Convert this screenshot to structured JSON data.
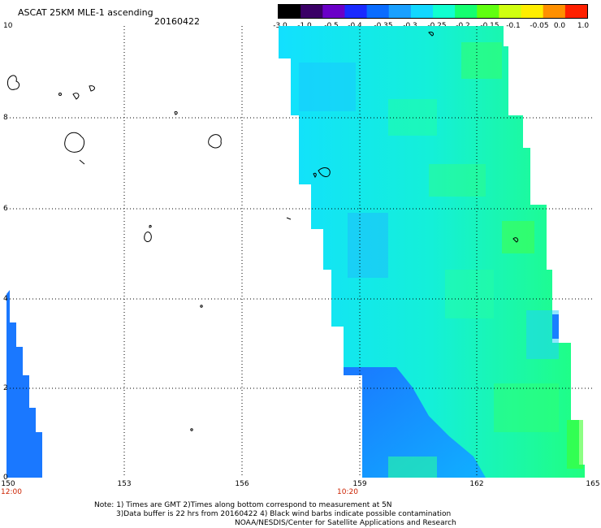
{
  "header": {
    "title": "ASCAT 25KM MLE-1 ascending",
    "date": "20160422"
  },
  "colorbar": {
    "labels": [
      "-3.0",
      "-1.0",
      "-0.5",
      "-0.4",
      "-0.35",
      "-0.3",
      "-0.25",
      "-0.2",
      "-0.15",
      "-0.1",
      "-0.05",
      "0.0",
      "1.0"
    ],
    "colors": [
      "#000000",
      "#3a0066",
      "#6a00c8",
      "#1a2aff",
      "#0a6cff",
      "#1aa0ff",
      "#12d8ff",
      "#10ffd0",
      "#14ff70",
      "#60ff10",
      "#d0ff10",
      "#ffee00",
      "#ff9000",
      "#ff2000"
    ]
  },
  "map": {
    "x_ticks": [
      "150",
      "153",
      "156",
      "159",
      "162",
      "165"
    ],
    "y_ticks": [
      "0",
      "2",
      "4",
      "6",
      "8",
      "10"
    ],
    "time_labels": [
      "12:00",
      "10:20"
    ],
    "grid": "dotted"
  },
  "footer": {
    "note_line1": "Note: 1) Times are GMT 2)Times along bottom correspond to measurement at 5N",
    "note_line2": "3)Data buffer is 22 hrs from 20160422 4) Black wind barbs indicate possible contamination",
    "note_line3": "NOAA/NESDIS/Center for Satellite Applications and Research"
  }
}
